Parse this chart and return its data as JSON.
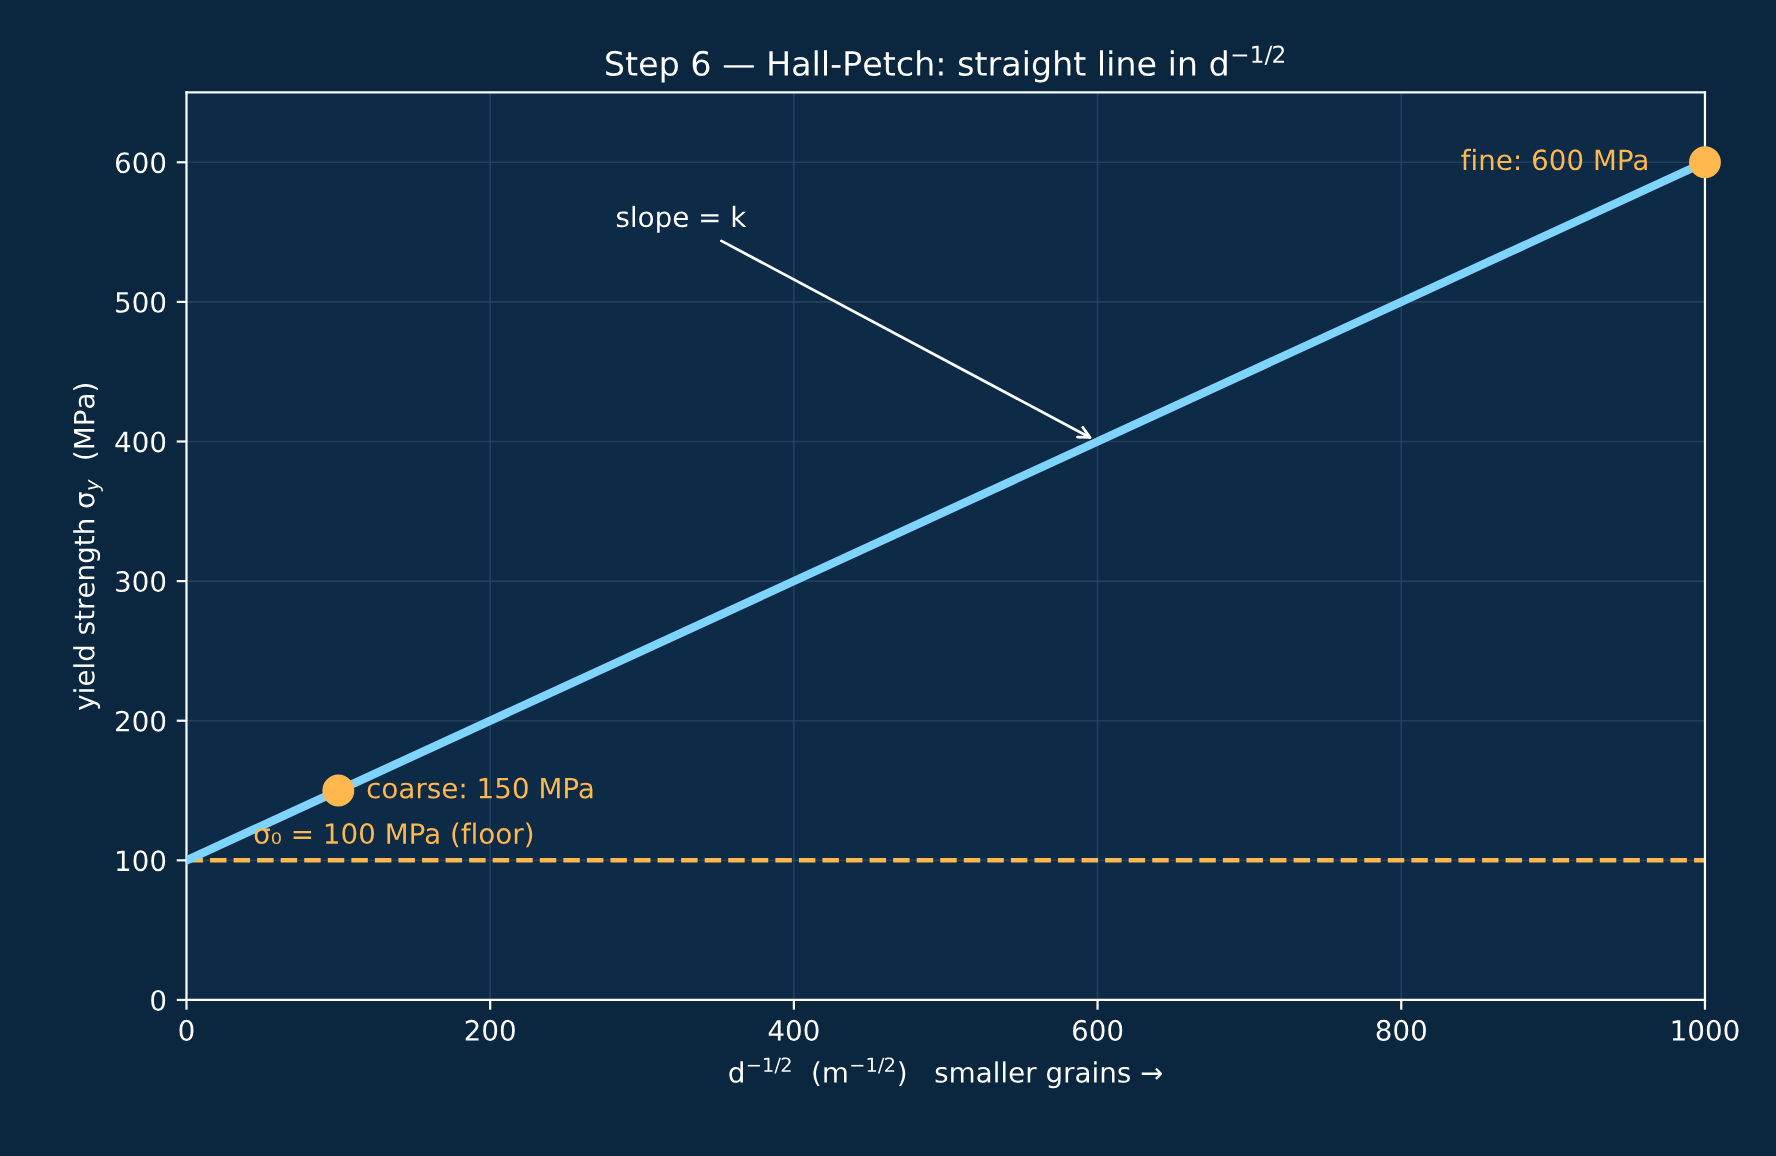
{
  "chart_data": {
    "type": "line",
    "title": "Step 6 — Hall-Petch: straight line in d$^{−1/2}$",
    "xlabel": "d$^{−1/2}$  (m$^{−1/2}$)   smaller grains →",
    "ylabel": "yield strength σ$_{y}$  (MPa)",
    "series": [
      {
        "color": "#7fd3ff",
        "x": [
          0,
          1000
        ],
        "values": [
          100,
          600
        ],
        "line_style": "solid",
        "marker": "none"
      },
      {
        "type": "scatter",
        "color": "#ffb84d",
        "x": [
          100,
          1000
        ],
        "values": [
          150,
          600
        ],
        "marker": "circle"
      }
    ],
    "xlim": [
      0,
      1000
    ],
    "xticks": [
      0,
      200,
      400,
      600,
      800,
      1000
    ],
    "ylim": [
      0,
      650
    ],
    "yticks": [
      0,
      100,
      200,
      300,
      400,
      500,
      600
    ],
    "grid": true,
    "ref_lines": [
      {
        "axis": "y",
        "value": 100,
        "label": "σ₀ = 100 MPa (floor)",
        "color": "#ffb84d",
        "line_style": "dashed"
      }
    ],
    "annotations": [
      {
        "text": "coarse: 150 MPa",
        "x": 100,
        "y": 150
      },
      {
        "text": "fine: 600 MPa",
        "x": 1000,
        "y": 600
      },
      {
        "text": "slope = k",
        "x": 600,
        "y": 400
      }
    ]
  }
}
